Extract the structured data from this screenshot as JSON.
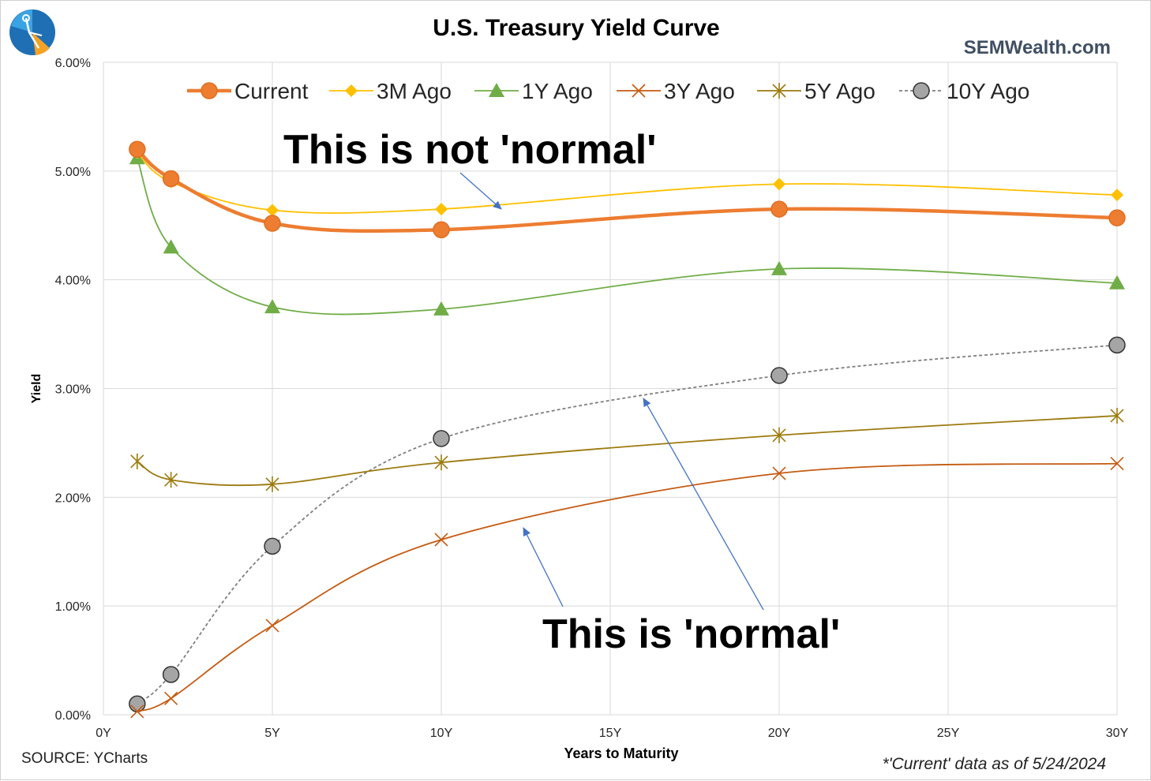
{
  "header": {
    "title": "U.S. Treasury Yield Curve",
    "brand": "SEMWealth.com"
  },
  "footer": {
    "source": "SOURCE: YCharts",
    "note": "*'Current' data as of 5/24/2024"
  },
  "annotations": {
    "not_normal": "This is not 'normal'",
    "normal": "This is 'normal'"
  },
  "logo_icon": "compass-pin-logo-icon",
  "chart_data": {
    "type": "line",
    "title": "U.S. Treasury Yield Curve",
    "xlabel": "Years to Maturity",
    "ylabel": "Yield",
    "xlim": [
      0,
      30
    ],
    "ylim": [
      0,
      0.06
    ],
    "x_ticks": [
      0,
      5,
      10,
      15,
      20,
      25,
      30
    ],
    "x_tick_labels": [
      "0Y",
      "5Y",
      "10Y",
      "15Y",
      "20Y",
      "25Y",
      "30Y"
    ],
    "y_ticks": [
      0,
      0.01,
      0.02,
      0.03,
      0.04,
      0.05,
      0.06
    ],
    "y_tick_labels": [
      "0.00%",
      "1.00%",
      "2.00%",
      "3.00%",
      "4.00%",
      "5.00%",
      "6.00%"
    ],
    "grid": true,
    "legend_position": "top",
    "x": [
      1,
      2,
      5,
      10,
      20,
      30
    ],
    "series": [
      {
        "name": "Current",
        "values": [
          0.052,
          0.0493,
          0.0452,
          0.0446,
          0.0465,
          0.0457
        ],
        "color": "#ED7D31",
        "marker": "circle",
        "style": "thick"
      },
      {
        "name": "3M Ago",
        "values": [
          0.0517,
          0.049,
          0.0464,
          0.0465,
          0.0488,
          0.0478
        ],
        "color": "#FFC000",
        "marker": "diamond",
        "style": "solid"
      },
      {
        "name": "1Y Ago",
        "values": [
          0.0512,
          0.043,
          0.0375,
          0.0373,
          0.041,
          0.0397
        ],
        "color": "#70AD47",
        "marker": "triangle",
        "style": "solid"
      },
      {
        "name": "3Y Ago",
        "values": [
          0.0003,
          0.0015,
          0.0082,
          0.0161,
          0.0222,
          0.0231
        ],
        "color": "#C55A11",
        "marker": "x",
        "style": "solid"
      },
      {
        "name": "5Y Ago",
        "values": [
          0.0233,
          0.0216,
          0.0212,
          0.0232,
          0.0257,
          0.0275
        ],
        "color": "#9C7A0E",
        "marker": "star",
        "style": "solid"
      },
      {
        "name": "10Y Ago",
        "values": [
          0.001,
          0.0037,
          0.0155,
          0.0254,
          0.0312,
          0.034
        ],
        "color": "#7F7F7F",
        "marker": "circle-gray",
        "style": "dashed"
      }
    ]
  }
}
